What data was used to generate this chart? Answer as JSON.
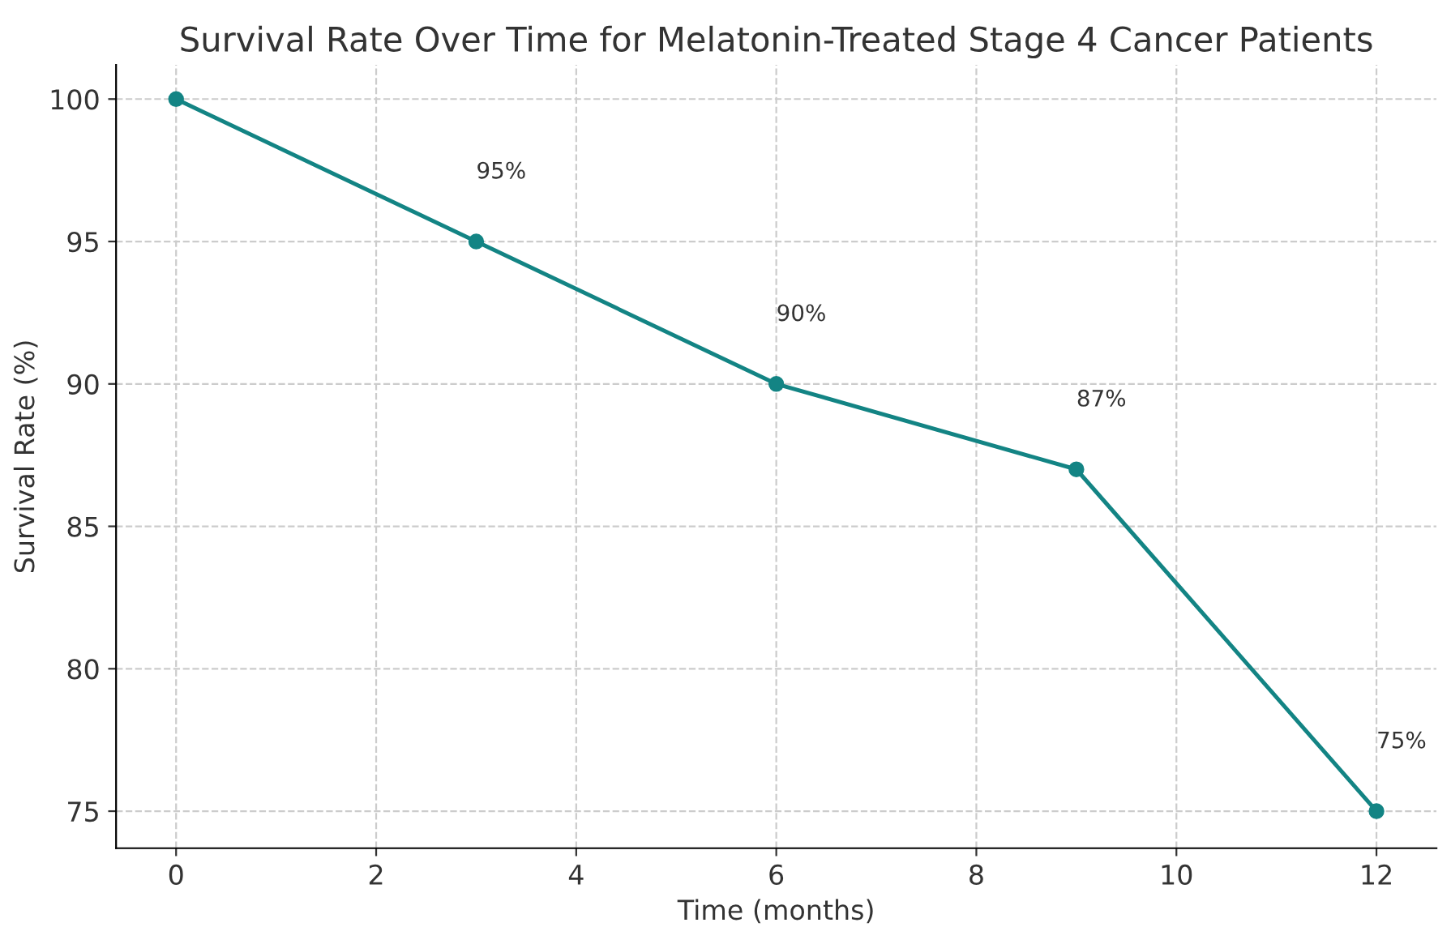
{
  "chart_data": {
    "type": "line",
    "title": "Survival Rate Over Time for Melatonin-Treated Stage 4 Cancer Patients",
    "xlabel": "Time (months)",
    "ylabel": "Survival Rate (%)",
    "x": [
      0,
      3,
      6,
      9,
      12
    ],
    "series": [
      {
        "color": "#138484",
        "values": [
          100,
          95,
          90,
          87,
          75
        ],
        "value_labels": [
          null,
          "95%",
          "90%",
          "87%",
          "75%"
        ]
      }
    ],
    "xlim": [
      -0.6,
      12.6
    ],
    "ylim": [
      73.7,
      101.2
    ],
    "xticks": [
      0,
      2,
      4,
      6,
      8,
      10,
      12
    ],
    "yticks": [
      75,
      80,
      85,
      90,
      95,
      100
    ],
    "grid": true,
    "marker": "circle",
    "line_style": "solid"
  }
}
